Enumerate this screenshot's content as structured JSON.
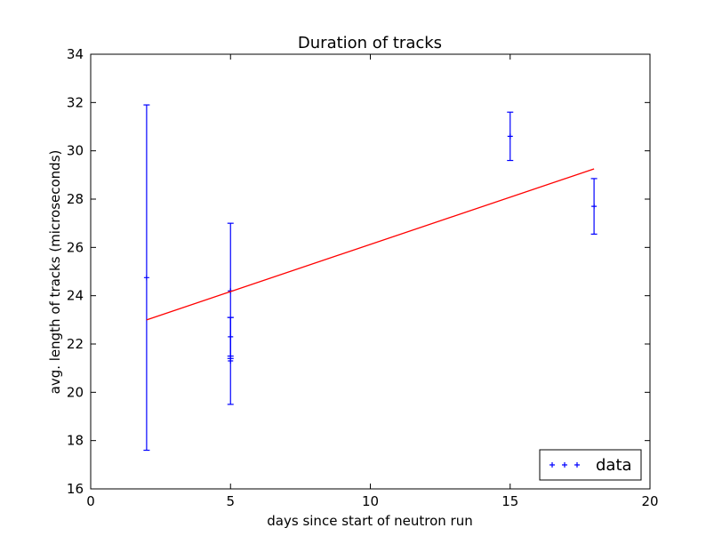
{
  "chart_data": {
    "type": "scatter",
    "title": "Duration of tracks",
    "xlabel": "days since start of neutron run",
    "ylabel": "avg. length of tracks (microseconds)",
    "xlim": [
      0,
      20
    ],
    "ylim": [
      16,
      34
    ],
    "xticks": [
      0,
      5,
      10,
      15,
      20
    ],
    "yticks": [
      16,
      18,
      20,
      22,
      24,
      26,
      28,
      30,
      32,
      34
    ],
    "grid": false,
    "legend_position": "lower-right",
    "series": [
      {
        "name": "data",
        "kind": "errorbar",
        "marker": "+",
        "color": "#0000ff",
        "points": [
          {
            "x": 2,
            "y": 24.75,
            "err": 7.15
          },
          {
            "x": 5,
            "y": 24.2,
            "err": 2.8
          },
          {
            "x": 5,
            "y": 22.3,
            "err": 0.8
          },
          {
            "x": 5,
            "y": 21.3,
            "err": 1.8
          },
          {
            "x": 15,
            "y": 30.6,
            "err": 1.0
          },
          {
            "x": 18,
            "y": 27.7,
            "err": 1.15
          }
        ]
      },
      {
        "kind": "line",
        "color": "#ff0000",
        "x": [
          2,
          18
        ],
        "y": [
          23.0,
          29.25
        ]
      }
    ]
  }
}
